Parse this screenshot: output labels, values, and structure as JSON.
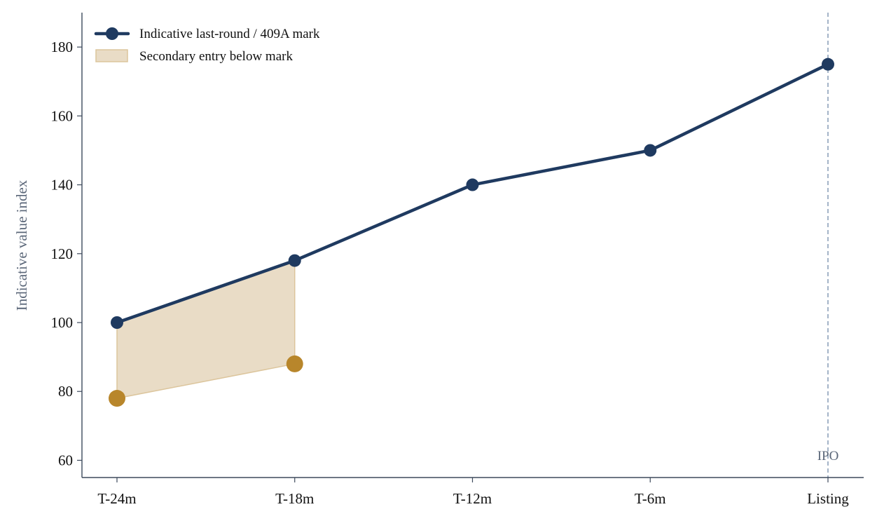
{
  "chart_data": {
    "type": "line",
    "title": "",
    "xlabel": "",
    "ylabel": "Indicative value index",
    "categories": [
      "T-24m",
      "T-18m",
      "T-12m",
      "T-6m",
      "Listing"
    ],
    "ylim": [
      55,
      190
    ],
    "yticks": [
      60,
      80,
      100,
      120,
      140,
      160,
      180
    ],
    "grid": false,
    "legend_position": "top-left",
    "series": [
      {
        "name": "Indicative last-round / 409A mark",
        "values": [
          100,
          118,
          140,
          150,
          175
        ],
        "color": "#1f3a60"
      }
    ],
    "secondary_entries": {
      "categories": [
        "T-24m",
        "T-18m"
      ],
      "values": [
        78,
        88
      ],
      "color": "#b8862b"
    },
    "shaded_band": {
      "name": "Secondary entry below mark",
      "from_categories": [
        "T-24m",
        "T-18m"
      ],
      "lower_values": [
        78,
        88
      ],
      "upper_values": [
        100,
        118
      ],
      "color": "#e9dcc6",
      "edge_color": "#dcc59c"
    },
    "annotations": [
      {
        "category": "Listing",
        "label": "IPO",
        "line_style": "dashed",
        "color": "#8da1bb"
      }
    ]
  }
}
